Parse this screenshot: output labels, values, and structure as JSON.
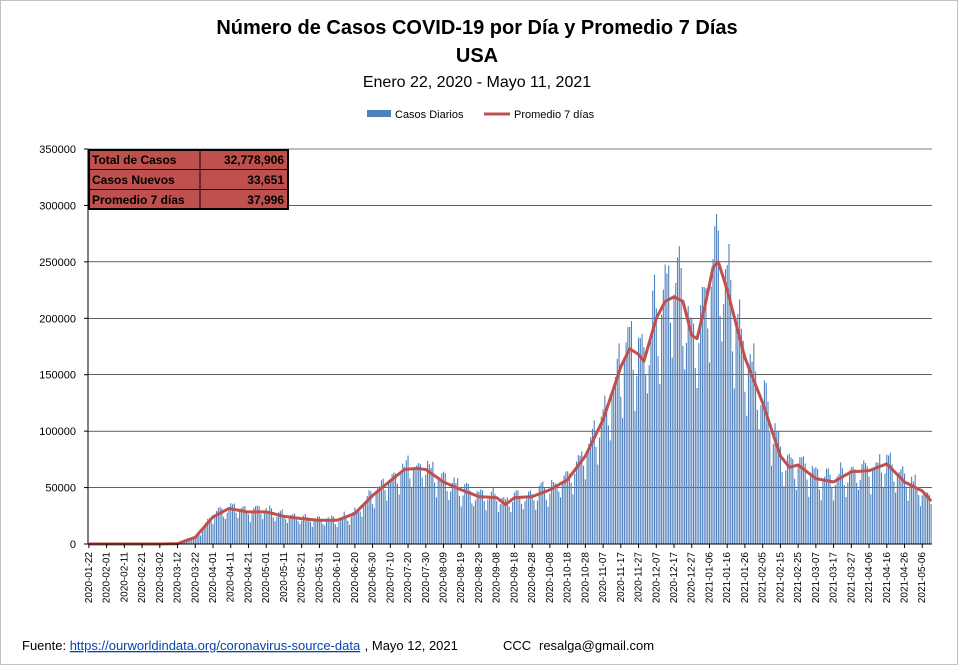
{
  "chart_data": {
    "type": "bar",
    "title": "Número de  Casos  COVID-19 por Día y Promedio 7 Días",
    "title_line2": "USA",
    "subtitle": "Enero 22, 2020 - Mayo 11, 2021",
    "ylim": [
      0,
      350000
    ],
    "y_ticks": [
      "0",
      "50000",
      "100000",
      "150000",
      "200000",
      "250000",
      "300000",
      "350000"
    ],
    "grid": true,
    "legend_position": "top-center",
    "x_tick_labels": [
      "2020-01-22",
      "2020-02-01",
      "2020-02-11",
      "2020-02-21",
      "2020-03-02",
      "2020-03-12",
      "2020-03-22",
      "2020-04-01",
      "2020-04-11",
      "2020-04-21",
      "2020-05-01",
      "2020-05-11",
      "2020-05-21",
      "2020-05-31",
      "2020-06-10",
      "2020-06-20",
      "2020-06-30",
      "2020-07-10",
      "2020-07-20",
      "2020-07-30",
      "2020-08-09",
      "2020-08-19",
      "2020-08-29",
      "2020-09-08",
      "2020-09-18",
      "2020-09-28",
      "2020-10-08",
      "2020-10-18",
      "2020-10-28",
      "2020-11-07",
      "2020-11-17",
      "2020-11-27",
      "2020-12-07",
      "2020-12-17",
      "2020-12-27",
      "2021-01-06",
      "2021-01-16",
      "2021-01-26",
      "2021-02-05",
      "2021-02-15",
      "2021-02-25",
      "2021-03-07",
      "2021-03-17",
      "2021-03-27",
      "2021-04-06",
      "2021-04-16",
      "2021-04-26",
      "2021-05-06"
    ],
    "x_start": "2020-01-22",
    "x_end": "2021-05-11",
    "series": [
      {
        "name": "Casos Diarios",
        "kind": "bar",
        "color": "#4f81bd",
        "note": "daily values derived from the 7-day average anchors plus weekly pattern"
      },
      {
        "name": "Promedio 7 días",
        "kind": "line",
        "color": "#c0504d",
        "anchors": [
          [
            "2020-01-22",
            0
          ],
          [
            "2020-03-01",
            0
          ],
          [
            "2020-03-12",
            300
          ],
          [
            "2020-03-22",
            6000
          ],
          [
            "2020-04-01",
            24000
          ],
          [
            "2020-04-10",
            31500
          ],
          [
            "2020-04-20",
            28500
          ],
          [
            "2020-05-01",
            28500
          ],
          [
            "2020-05-11",
            24500
          ],
          [
            "2020-05-21",
            22500
          ],
          [
            "2020-05-31",
            21000
          ],
          [
            "2020-06-10",
            21000
          ],
          [
            "2020-06-20",
            27000
          ],
          [
            "2020-06-30",
            43000
          ],
          [
            "2020-07-10",
            56000
          ],
          [
            "2020-07-18",
            66000
          ],
          [
            "2020-07-25",
            67000
          ],
          [
            "2020-07-30",
            66000
          ],
          [
            "2020-08-09",
            55000
          ],
          [
            "2020-08-19",
            48000
          ],
          [
            "2020-08-29",
            42000
          ],
          [
            "2020-09-08",
            41000
          ],
          [
            "2020-09-13",
            35000
          ],
          [
            "2020-09-18",
            41000
          ],
          [
            "2020-09-28",
            42000
          ],
          [
            "2020-10-08",
            48000
          ],
          [
            "2020-10-18",
            57000
          ],
          [
            "2020-10-28",
            78000
          ],
          [
            "2020-11-07",
            110000
          ],
          [
            "2020-11-17",
            157000
          ],
          [
            "2020-11-22",
            173000
          ],
          [
            "2020-11-27",
            168000
          ],
          [
            "2020-11-30",
            162000
          ],
          [
            "2020-12-07",
            200000
          ],
          [
            "2020-12-12",
            215000
          ],
          [
            "2020-12-17",
            219000
          ],
          [
            "2020-12-22",
            215000
          ],
          [
            "2020-12-27",
            185000
          ],
          [
            "2020-12-30",
            182000
          ],
          [
            "2021-01-04",
            215000
          ],
          [
            "2021-01-08",
            245000
          ],
          [
            "2021-01-11",
            250000
          ],
          [
            "2021-01-16",
            225000
          ],
          [
            "2021-01-26",
            165000
          ],
          [
            "2021-02-05",
            125000
          ],
          [
            "2021-02-15",
            78000
          ],
          [
            "2021-02-20",
            68000
          ],
          [
            "2021-02-25",
            70000
          ],
          [
            "2021-03-07",
            58000
          ],
          [
            "2021-03-17",
            55000
          ],
          [
            "2021-03-27",
            64000
          ],
          [
            "2021-04-06",
            65000
          ],
          [
            "2021-04-16",
            71000
          ],
          [
            "2021-04-26",
            55000
          ],
          [
            "2021-05-06",
            47000
          ],
          [
            "2021-05-11",
            38000
          ]
        ]
      }
    ]
  },
  "stats_box": {
    "rows": [
      {
        "label": "Total de Casos",
        "value": "32,778,906"
      },
      {
        "label": "Casos Nuevos",
        "value": "33,651"
      },
      {
        "label": "Promedio 7 días",
        "value": "37,996"
      }
    ],
    "fill_color": "#c0504d"
  },
  "footer": {
    "source_label": "Fuente: ",
    "link_text": "https://ourworldindata.org/coronavirus-source-data",
    "date_text": ", Mayo 12, 2021",
    "credit": "CCC",
    "email": "resalga@gmail.com"
  }
}
